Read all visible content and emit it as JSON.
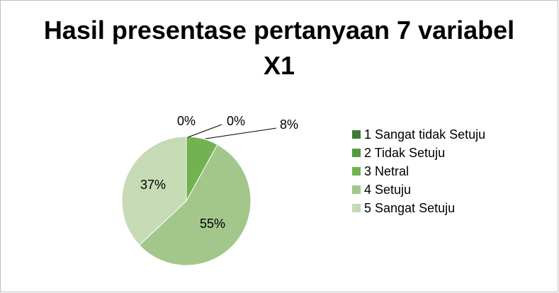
{
  "chart_data": {
    "type": "pie",
    "title": "Hasil presentase pertanyaan 7 variabel X1",
    "categories": [
      "1 Sangat tidak Setuju",
      "2 Tidak Setuju",
      "3 Netral",
      "4 Setuju",
      "5 Sangat Setuju"
    ],
    "values": [
      0,
      0,
      8,
      55,
      37
    ],
    "value_labels": [
      "0%",
      "0%",
      "8%",
      "55%",
      "37%"
    ],
    "colors": [
      "#3f7a32",
      "#529c3c",
      "#72b251",
      "#a3c68a",
      "#c6dab5"
    ],
    "legend": "right"
  }
}
